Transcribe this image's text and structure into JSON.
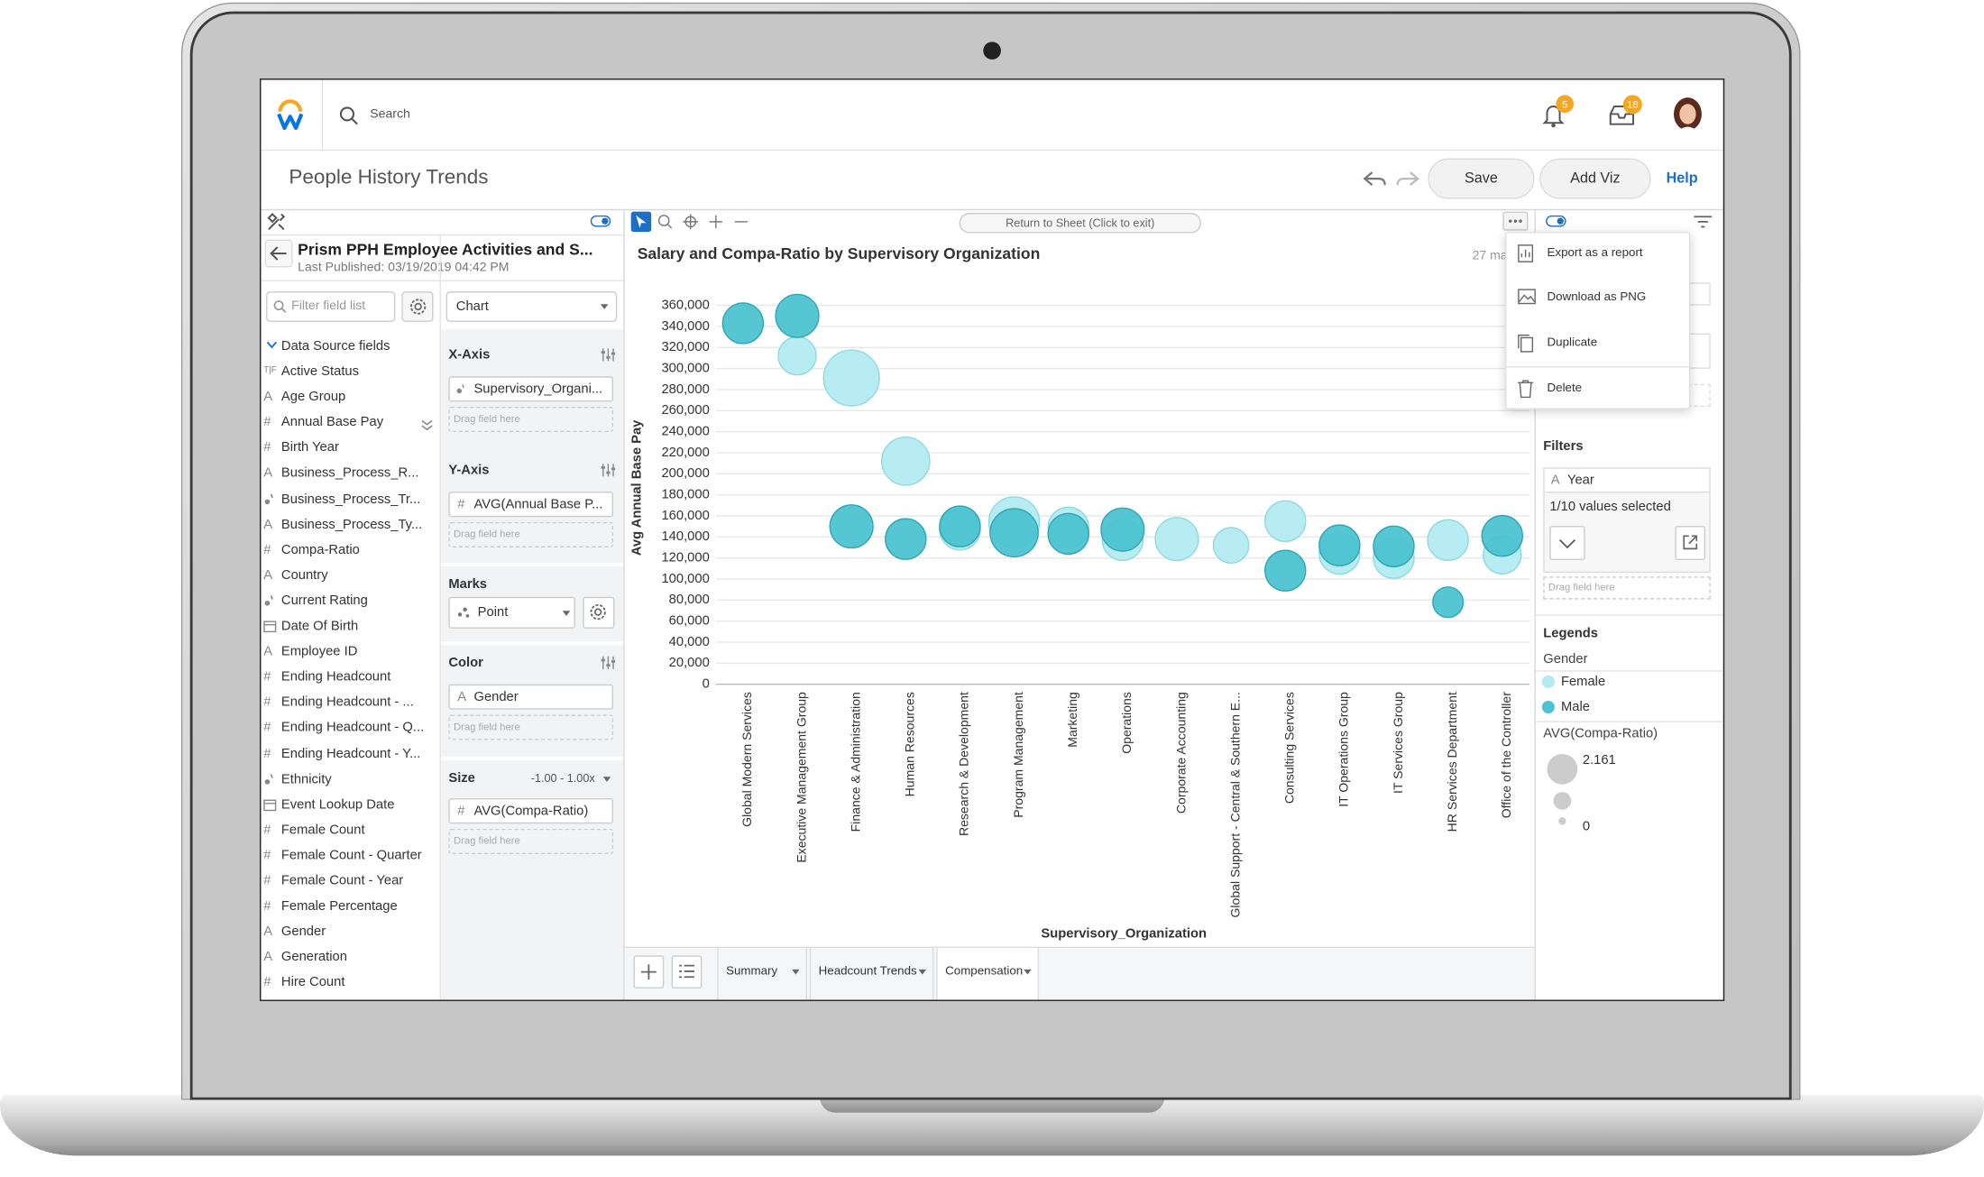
{
  "header": {
    "search": "Search",
    "notifications": "5",
    "inbox": "18"
  },
  "title_bar": {
    "title": "People History Trends",
    "save": "Save",
    "add_viz": "Add Viz",
    "help": "Help"
  },
  "data_source": {
    "name": "Prism PPH Employee Activities and S...",
    "published": "Last Published: 03/19/2019 04:42 PM",
    "filter": "Filter field list",
    "section": "Data Source fields",
    "fields": [
      {
        "icon": "T|F",
        "label": "Active Status"
      },
      {
        "icon": "A",
        "label": "Age Group"
      },
      {
        "icon": "#",
        "label": "Annual Base Pay"
      },
      {
        "icon": "#",
        "label": "Birth Year"
      },
      {
        "icon": "A",
        "label": "Business_Process_R..."
      },
      {
        "kind": "link",
        "label": "Business_Process_Tr..."
      },
      {
        "icon": "A",
        "label": "Business_Process_Ty..."
      },
      {
        "icon": "#",
        "label": "Compa-Ratio"
      },
      {
        "icon": "A",
        "label": "Country"
      },
      {
        "kind": "link",
        "label": "Current Rating"
      },
      {
        "kind": "date",
        "label": "Date Of Birth"
      },
      {
        "icon": "A",
        "label": "Employee ID"
      },
      {
        "icon": "#",
        "label": "Ending Headcount"
      },
      {
        "icon": "#",
        "label": "Ending Headcount - ..."
      },
      {
        "icon": "#",
        "label": "Ending Headcount - Q..."
      },
      {
        "icon": "#",
        "label": "Ending Headcount - Y..."
      },
      {
        "kind": "link",
        "label": "Ethnicity"
      },
      {
        "kind": "date",
        "label": "Event Lookup Date"
      },
      {
        "icon": "#",
        "label": "Female Count"
      },
      {
        "icon": "#",
        "label": "Female Count - Quarter"
      },
      {
        "icon": "#",
        "label": "Female Count - Year"
      },
      {
        "icon": "#",
        "label": "Female Percentage"
      },
      {
        "icon": "A",
        "label": "Gender"
      },
      {
        "icon": "A",
        "label": "Generation"
      },
      {
        "icon": "#",
        "label": "Hire Count"
      }
    ]
  },
  "config": {
    "chart_type": "Chart",
    "x_axis": "X-Axis",
    "x_field": "Supervisory_Organi...",
    "y_axis": "Y-Axis",
    "y_field": "AVG(Annual Base P...",
    "marks": "Marks",
    "mark_type": "Point",
    "color": "Color",
    "color_field": "Gender",
    "size": "Size",
    "size_range": "-1.00 - 1.00x",
    "size_field": "AVG(Compa-Ratio)",
    "drop_hint": "Drag field here"
  },
  "toolbar": {
    "return": "Return to Sheet (Click to exit)"
  },
  "chart_data": {
    "type": "bubble",
    "title": "Salary and Compa-Ratio by Supervisory Organization",
    "note": "27 ma",
    "x_label": "Supervisory_Organization",
    "y_label": "Avg Annual Base Pay",
    "categories": [
      "Global Modern Services",
      "Executive Management Group",
      "Finance & Administration",
      "Human Resources",
      "Research & Development",
      "Program Management",
      "Marketing",
      "Operations",
      "Corporate Accounting",
      "Global Support - Central & Southern E...",
      "Consulting Services",
      "IT Operations Group",
      "IT Services Group",
      "HR Services Department",
      "Office of the Controller"
    ],
    "ylim": [
      0,
      360000
    ],
    "yticks": [
      0,
      {
        "value": 20000,
        "label": "20,000"
      },
      {
        "value": 40000,
        "label": "40,000"
      },
      {
        "value": 60000,
        "label": "60,000"
      },
      {
        "value": 80000,
        "label": "80,000"
      },
      {
        "value": 100000,
        "label": "100,000"
      },
      {
        "value": 120000,
        "label": "120,000"
      },
      {
        "value": 140000,
        "label": "140,000"
      },
      {
        "value": 160000,
        "label": "160,000"
      },
      {
        "value": 180000,
        "label": "180,000"
      },
      {
        "value": 200000,
        "label": "200,000"
      },
      {
        "value": 220000,
        "label": "220,000"
      },
      {
        "value": 240000,
        "label": "240,000"
      },
      {
        "value": 260000,
        "label": "260,000"
      },
      {
        "value": 280000,
        "label": "280,000"
      },
      {
        "value": 300000,
        "label": "300,000"
      },
      {
        "value": 320000,
        "label": "320,000"
      },
      {
        "value": 340000,
        "label": "340,000"
      },
      {
        "value": 360000,
        "label": "360,000"
      }
    ],
    "grid": true,
    "series": [
      {
        "name": "Female",
        "color": "#b3ebf2",
        "values": [
          null,
          312000,
          291000,
          212000,
          147000,
          154000,
          149000,
          137000,
          138000,
          132000,
          155000,
          124000,
          120000,
          137000,
          123000
        ],
        "sizes": [
          null,
          0.92,
          1.98,
          1.47,
          1.05,
          1.63,
          1.05,
          1.05,
          1.18,
          0.8,
          1.05,
          1.05,
          1.05,
          1.05,
          0.92
        ]
      },
      {
        "name": "Male",
        "color": "#4cc3d0",
        "values": [
          343000,
          350000,
          150000,
          138000,
          150000,
          144000,
          143000,
          147000,
          null,
          null,
          108000,
          132000,
          131000,
          78000,
          141000
        ],
        "sizes": [
          1.05,
          1.18,
          1.18,
          1.05,
          1.05,
          1.47,
          1.05,
          1.18,
          null,
          null,
          1.05,
          1.05,
          1.05,
          0.59,
          1.05
        ]
      }
    ],
    "size_title": "AVG(Compa-Ratio)",
    "size_legend": [
      2.161,
      0
    ]
  },
  "menu": {
    "items": [
      "Export as a report",
      "Download as PNG",
      "Duplicate",
      "Delete"
    ]
  },
  "right_panel": {
    "filters": "Filters",
    "filter_icon": "A",
    "filter_field": "Year",
    "filter_status": "1/10 values selected",
    "drop_hint": "Drag field here",
    "legends": "Legends",
    "color_title": "Gender"
  },
  "tabs": [
    "Summary",
    "Headcount Trends",
    "Compensation"
  ]
}
